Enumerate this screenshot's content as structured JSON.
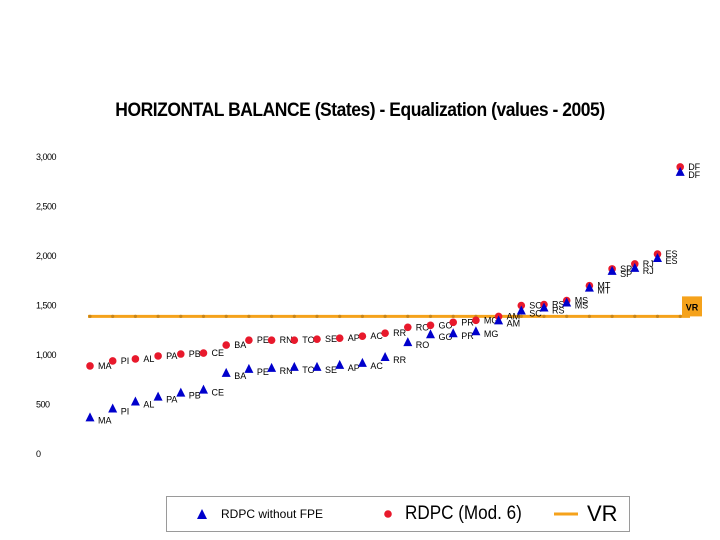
{
  "chart_data": {
    "type": "scatter",
    "title": "HORIZONTAL BALANCE (States) - Equalization (values - 2005)",
    "xlabel": "",
    "ylabel": "",
    "ylim": [
      0,
      3000
    ],
    "y_ticks": [
      "0",
      "500",
      "1,000",
      "1,500",
      "2,000",
      "2,500",
      "3,000"
    ],
    "grid": false,
    "legend_position": "bottom",
    "categories": [
      "MA",
      "PI",
      "AL",
      "PA",
      "PB",
      "CE",
      "BA",
      "PE",
      "RN",
      "TO",
      "SE",
      "AP",
      "AC",
      "RR",
      "RO",
      "GO",
      "PR",
      "MG",
      "AM",
      "SC",
      "RS",
      "MS",
      "MT",
      "SP",
      "RJ",
      "ES",
      "DF"
    ],
    "series": [
      {
        "name": "RDPC without FPE",
        "marker": "triangle",
        "color": "#0000cc",
        "values": [
          370,
          460,
          530,
          580,
          620,
          650,
          820,
          860,
          870,
          880,
          880,
          900,
          920,
          980,
          1130,
          1210,
          1220,
          1240,
          1350,
          1450,
          1480,
          1530,
          1680,
          1850,
          1880,
          1980,
          2850
        ]
      },
      {
        "name": "RDPC (Mod. 6)",
        "marker": "circle",
        "color": "#e8192c",
        "values": [
          890,
          940,
          960,
          990,
          1010,
          1020,
          1100,
          1150,
          1150,
          1150,
          1160,
          1170,
          1190,
          1220,
          1280,
          1300,
          1330,
          1350,
          1390,
          1500,
          1510,
          1550,
          1700,
          1870,
          1920,
          2020,
          2900
        ]
      },
      {
        "name": "VR",
        "marker": "line",
        "color": "#f5a21b",
        "value": 1390,
        "label": "VR"
      }
    ]
  }
}
